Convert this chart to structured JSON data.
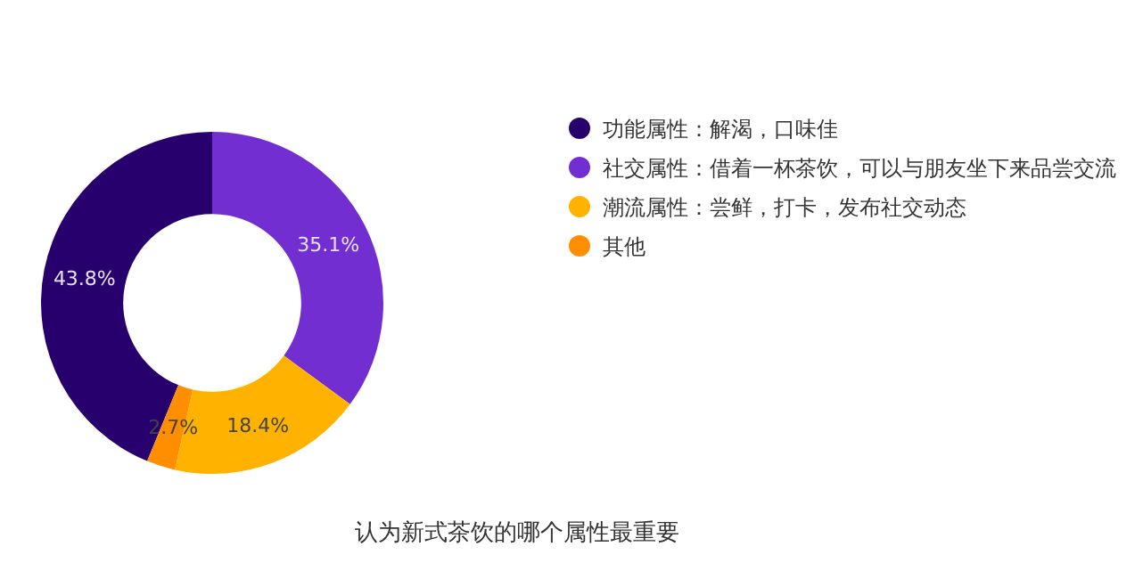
{
  "chart_data": {
    "type": "donut",
    "title": "认为新式茶饮的哪个属性最重要",
    "categories": [
      "功能属性：解渴，口味佳",
      "社交属性：借着一杯茶饮，可以与朋友坐下来品尝交流",
      "潮流属性：尝鲜，打卡，发布社交动态",
      "其他"
    ],
    "values": [
      43.8,
      35.1,
      18.4,
      2.7
    ],
    "value_labels": [
      "43.8%",
      "35.1%",
      "18.4%",
      "2.7%"
    ],
    "colors": [
      "#27006e",
      "#722ed1",
      "#ffb300",
      "#ff8f00"
    ],
    "legend": "right"
  }
}
